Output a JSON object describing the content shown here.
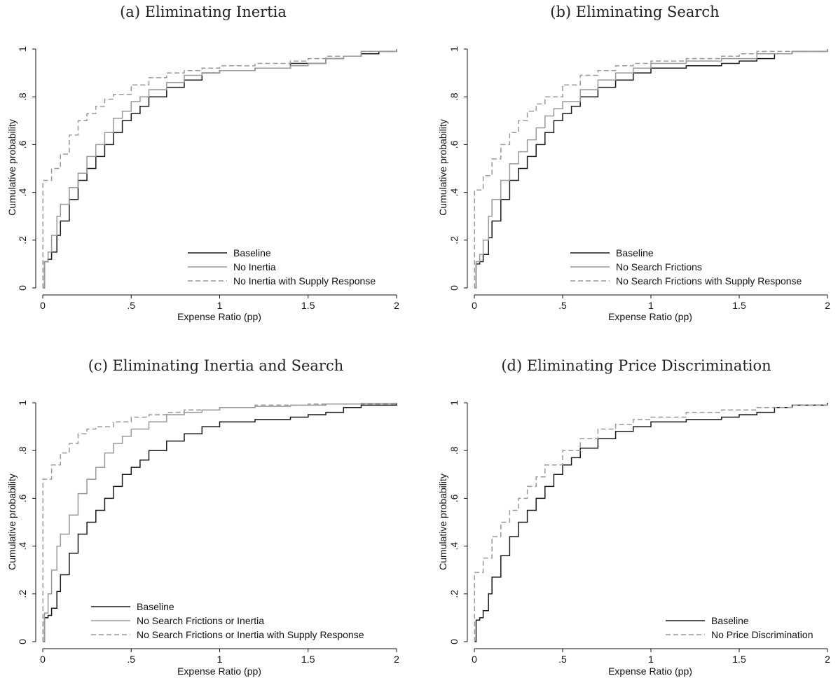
{
  "chart_data": [
    {
      "type": "line",
      "title": "(a) Eliminating Inertia",
      "xlabel": "Expense Ratio (pp)",
      "ylabel": "Cumulative probability",
      "xlim": [
        0,
        2
      ],
      "ylim": [
        0,
        1
      ],
      "xticks": [
        0,
        0.5,
        1,
        1.5,
        2
      ],
      "xtick_labels": [
        "0",
        ".5",
        "1",
        "1.5",
        "2"
      ],
      "yticks": [
        0,
        0.2,
        0.4,
        0.6,
        0.8,
        1
      ],
      "ytick_labels": [
        "0",
        ".2",
        ".4",
        ".6",
        ".8",
        "1"
      ],
      "grid": false,
      "legend_position": "bottom-right",
      "series": [
        {
          "name": "Baseline",
          "color": "#1a1a1a",
          "dash": "solid",
          "x": [
            0,
            0.01,
            0.03,
            0.05,
            0.08,
            0.1,
            0.15,
            0.2,
            0.25,
            0.3,
            0.35,
            0.4,
            0.45,
            0.5,
            0.55,
            0.6,
            0.7,
            0.8,
            0.9,
            1.0,
            1.2,
            1.4,
            1.5,
            1.6,
            1.7,
            1.8,
            1.9,
            2.0
          ],
          "y": [
            0,
            0.11,
            0.12,
            0.15,
            0.22,
            0.28,
            0.37,
            0.45,
            0.5,
            0.55,
            0.6,
            0.65,
            0.7,
            0.73,
            0.76,
            0.8,
            0.84,
            0.87,
            0.9,
            0.91,
            0.92,
            0.94,
            0.94,
            0.96,
            0.97,
            0.98,
            0.99,
            1.0
          ]
        },
        {
          "name": "No Inertia",
          "color": "#999999",
          "dash": "solid",
          "x": [
            0,
            0.01,
            0.03,
            0.05,
            0.08,
            0.1,
            0.15,
            0.2,
            0.25,
            0.3,
            0.35,
            0.4,
            0.45,
            0.5,
            0.55,
            0.6,
            0.7,
            0.8,
            0.9,
            1.0,
            1.2,
            1.4,
            1.5,
            1.6,
            1.7,
            1.8,
            1.9,
            2.0
          ],
          "y": [
            0,
            0.11,
            0.15,
            0.22,
            0.3,
            0.35,
            0.42,
            0.48,
            0.55,
            0.6,
            0.65,
            0.71,
            0.74,
            0.78,
            0.8,
            0.83,
            0.86,
            0.89,
            0.9,
            0.91,
            0.92,
            0.93,
            0.94,
            0.96,
            0.97,
            0.99,
            0.99,
            1.0
          ]
        },
        {
          "name": "No Inertia with Supply Response",
          "color": "#999999",
          "dash": "dashed",
          "x": [
            0,
            0.001,
            0.05,
            0.1,
            0.15,
            0.2,
            0.25,
            0.3,
            0.35,
            0.4,
            0.5,
            0.6,
            0.7,
            0.8,
            0.9,
            1.0,
            1.2,
            1.4,
            1.5,
            1.6,
            1.8,
            2.0
          ],
          "y": [
            0,
            0.45,
            0.5,
            0.56,
            0.64,
            0.7,
            0.73,
            0.76,
            0.79,
            0.81,
            0.85,
            0.88,
            0.9,
            0.91,
            0.92,
            0.93,
            0.94,
            0.95,
            0.96,
            0.97,
            0.99,
            1.0
          ]
        }
      ]
    },
    {
      "type": "line",
      "title": "(b) Eliminating Search",
      "xlabel": "Expense Ratio (pp)",
      "ylabel": "Cumulative probability",
      "xlim": [
        0,
        2
      ],
      "ylim": [
        0,
        1
      ],
      "xticks": [
        0,
        0.5,
        1,
        1.5,
        2
      ],
      "xtick_labels": [
        "0",
        ".5",
        "1",
        "1.5",
        "2"
      ],
      "yticks": [
        0,
        0.2,
        0.4,
        0.6,
        0.8,
        1
      ],
      "ytick_labels": [
        "0",
        ".2",
        ".4",
        ".6",
        ".8",
        "1"
      ],
      "grid": false,
      "legend_position": "bottom-right",
      "series": [
        {
          "name": "Baseline",
          "color": "#1a1a1a",
          "dash": "solid",
          "x": [
            0,
            0.01,
            0.03,
            0.05,
            0.08,
            0.1,
            0.15,
            0.2,
            0.25,
            0.3,
            0.35,
            0.4,
            0.45,
            0.5,
            0.55,
            0.6,
            0.7,
            0.8,
            0.9,
            1.0,
            1.2,
            1.4,
            1.5,
            1.6,
            1.7,
            1.8,
            1.9,
            2.0
          ],
          "y": [
            0,
            0.1,
            0.11,
            0.14,
            0.21,
            0.28,
            0.37,
            0.45,
            0.5,
            0.55,
            0.6,
            0.65,
            0.7,
            0.73,
            0.76,
            0.8,
            0.84,
            0.87,
            0.9,
            0.92,
            0.93,
            0.94,
            0.95,
            0.96,
            0.98,
            0.99,
            0.99,
            1.0
          ]
        },
        {
          "name": "No Search Frictions",
          "color": "#999999",
          "dash": "solid",
          "x": [
            0,
            0.01,
            0.03,
            0.05,
            0.08,
            0.1,
            0.15,
            0.2,
            0.25,
            0.3,
            0.35,
            0.4,
            0.45,
            0.5,
            0.6,
            0.7,
            0.8,
            0.9,
            1.0,
            1.2,
            1.4,
            1.5,
            1.6,
            1.8,
            2.0
          ],
          "y": [
            0,
            0.11,
            0.14,
            0.2,
            0.3,
            0.37,
            0.45,
            0.52,
            0.57,
            0.62,
            0.67,
            0.72,
            0.75,
            0.78,
            0.83,
            0.87,
            0.9,
            0.92,
            0.94,
            0.95,
            0.96,
            0.96,
            0.98,
            0.99,
            1.0
          ]
        },
        {
          "name": "No Search Frictions with Supply Response",
          "color": "#999999",
          "dash": "dashed",
          "x": [
            0,
            0.001,
            0.05,
            0.1,
            0.15,
            0.2,
            0.25,
            0.3,
            0.35,
            0.4,
            0.5,
            0.6,
            0.7,
            0.8,
            0.9,
            1.0,
            1.2,
            1.4,
            1.5,
            1.6,
            1.8,
            2.0
          ],
          "y": [
            0,
            0.41,
            0.47,
            0.54,
            0.6,
            0.65,
            0.7,
            0.74,
            0.77,
            0.8,
            0.85,
            0.89,
            0.91,
            0.93,
            0.94,
            0.95,
            0.96,
            0.97,
            0.98,
            0.99,
            0.99,
            1.0
          ]
        }
      ]
    },
    {
      "type": "line",
      "title": "(c) Eliminating Inertia and Search",
      "xlabel": "Expense Ratio (pp)",
      "ylabel": "Cumulative probability",
      "xlim": [
        0,
        2
      ],
      "ylim": [
        0,
        1
      ],
      "xticks": [
        0,
        0.5,
        1,
        1.5,
        2
      ],
      "xtick_labels": [
        "0",
        ".5",
        "1",
        "1.5",
        "2"
      ],
      "yticks": [
        0,
        0.2,
        0.4,
        0.6,
        0.8,
        1
      ],
      "ytick_labels": [
        "0",
        ".2",
        ".4",
        ".6",
        ".8",
        "1"
      ],
      "grid": false,
      "legend_position": "bottom-right",
      "series": [
        {
          "name": "Baseline",
          "color": "#1a1a1a",
          "dash": "solid",
          "x": [
            0,
            0.01,
            0.03,
            0.05,
            0.08,
            0.1,
            0.15,
            0.2,
            0.25,
            0.3,
            0.35,
            0.4,
            0.45,
            0.5,
            0.55,
            0.6,
            0.7,
            0.8,
            0.9,
            1.0,
            1.2,
            1.4,
            1.5,
            1.6,
            1.7,
            1.8,
            1.9,
            2.0
          ],
          "y": [
            0,
            0.1,
            0.11,
            0.14,
            0.21,
            0.28,
            0.37,
            0.45,
            0.5,
            0.55,
            0.6,
            0.65,
            0.7,
            0.73,
            0.76,
            0.8,
            0.84,
            0.87,
            0.9,
            0.92,
            0.93,
            0.94,
            0.95,
            0.96,
            0.98,
            0.99,
            0.99,
            1.0
          ]
        },
        {
          "name": "No Search Frictions or Inertia",
          "color": "#999999",
          "dash": "solid",
          "x": [
            0,
            0.01,
            0.03,
            0.05,
            0.08,
            0.1,
            0.15,
            0.2,
            0.25,
            0.3,
            0.35,
            0.4,
            0.45,
            0.5,
            0.6,
            0.7,
            0.8,
            0.9,
            1.0,
            1.2,
            1.4,
            1.6,
            1.8,
            2.0
          ],
          "y": [
            0,
            0.12,
            0.2,
            0.3,
            0.4,
            0.45,
            0.53,
            0.62,
            0.68,
            0.73,
            0.79,
            0.83,
            0.86,
            0.89,
            0.92,
            0.95,
            0.96,
            0.97,
            0.98,
            0.985,
            0.99,
            0.995,
            0.998,
            1.0
          ]
        },
        {
          "name": "No Search Frictions or Inertia with Supply Response",
          "color": "#999999",
          "dash": "dashed",
          "x": [
            0,
            0.001,
            0.05,
            0.1,
            0.15,
            0.2,
            0.25,
            0.3,
            0.4,
            0.5,
            0.6,
            0.7,
            0.8,
            1.0,
            1.2,
            1.5,
            2.0
          ],
          "y": [
            0,
            0.68,
            0.74,
            0.79,
            0.83,
            0.87,
            0.89,
            0.9,
            0.92,
            0.94,
            0.95,
            0.96,
            0.97,
            0.98,
            0.99,
            0.995,
            1.0
          ]
        }
      ]
    },
    {
      "type": "line",
      "title": "(d) Eliminating Price Discrimination",
      "xlabel": "Expense Ratio (pp)",
      "ylabel": "Cumulative probability",
      "xlim": [
        0,
        2
      ],
      "ylim": [
        0,
        1
      ],
      "xticks": [
        0,
        0.5,
        1,
        1.5,
        2
      ],
      "xtick_labels": [
        "0",
        ".5",
        "1",
        "1.5",
        "2"
      ],
      "yticks": [
        0,
        0.2,
        0.4,
        0.6,
        0.8,
        1
      ],
      "ytick_labels": [
        "0",
        ".2",
        ".4",
        ".6",
        ".8",
        "1"
      ],
      "grid": false,
      "legend_position": "bottom-right",
      "series": [
        {
          "name": "Baseline",
          "color": "#1a1a1a",
          "dash": "solid",
          "x": [
            0,
            0.01,
            0.03,
            0.05,
            0.08,
            0.1,
            0.15,
            0.2,
            0.25,
            0.3,
            0.35,
            0.4,
            0.45,
            0.5,
            0.55,
            0.6,
            0.7,
            0.8,
            0.9,
            1.0,
            1.2,
            1.4,
            1.5,
            1.6,
            1.7,
            1.8,
            1.9,
            2.0
          ],
          "y": [
            0,
            0.09,
            0.1,
            0.13,
            0.2,
            0.27,
            0.36,
            0.44,
            0.5,
            0.55,
            0.6,
            0.65,
            0.7,
            0.74,
            0.77,
            0.81,
            0.85,
            0.88,
            0.9,
            0.92,
            0.93,
            0.94,
            0.95,
            0.96,
            0.98,
            0.99,
            0.99,
            1.0
          ]
        },
        {
          "name": "No Price Discrimination",
          "color": "#999999",
          "dash": "dashed",
          "x": [
            0,
            0.001,
            0.05,
            0.1,
            0.15,
            0.2,
            0.25,
            0.3,
            0.35,
            0.4,
            0.5,
            0.6,
            0.7,
            0.8,
            0.9,
            1.0,
            1.2,
            1.4,
            1.6,
            1.8,
            2.0
          ],
          "y": [
            0,
            0.29,
            0.35,
            0.44,
            0.5,
            0.55,
            0.6,
            0.65,
            0.69,
            0.74,
            0.8,
            0.85,
            0.89,
            0.91,
            0.93,
            0.94,
            0.96,
            0.97,
            0.98,
            0.99,
            1.0
          ]
        }
      ]
    }
  ]
}
